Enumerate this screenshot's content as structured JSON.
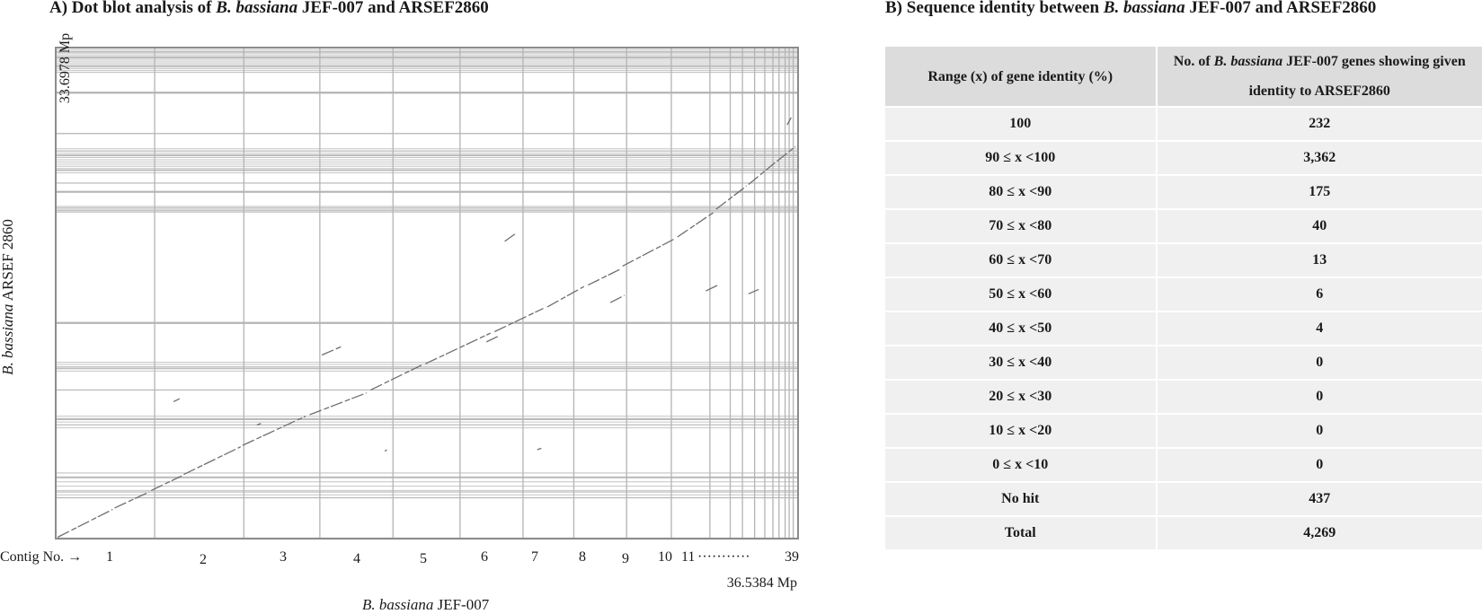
{
  "panel_a": {
    "title_prefix": "A) Dot blot analysis of ",
    "title_italic": "B. bassiana",
    "title_suffix": " JEF-007 and ARSEF2860",
    "y_max_label": "33.6978 Mp",
    "y_axis_italic": "B. bassiana",
    "y_axis_suffix": " ARSEF 2860",
    "x_axis_italic": "B. bassiana",
    "x_axis_suffix": " JEF-007",
    "x_max_label": "36.5384 Mp",
    "contig_label": "Contig No. →",
    "contig_numbers": [
      "1",
      "2",
      "3",
      "4",
      "5",
      "6",
      "7",
      "8",
      "9",
      "10",
      "11"
    ],
    "contig_dots": "···········",
    "contig_last": "39"
  },
  "chart_data": {
    "type": "scatter",
    "title": "A) Dot blot analysis of B. bassiana JEF-007 and ARSEF2860",
    "xlabel": "B. bassiana JEF-007",
    "ylabel": "B. bassiana ARSEF 2860",
    "xlim": [
      0,
      36.5384
    ],
    "ylim": [
      0,
      33.6978
    ],
    "x_unit": "Mp",
    "y_unit": "Mp",
    "grid": true,
    "x_contig_boundaries": [
      0,
      4.87,
      9.26,
      13.0,
      16.6,
      19.9,
      23.0,
      25.5,
      28.1,
      30.3,
      32.2,
      33.2,
      33.8,
      34.4,
      34.9,
      35.3,
      35.6,
      35.9,
      36.1,
      36.3,
      36.5384
    ],
    "y_contig_boundaries": [
      0,
      2.8,
      3.2,
      4.2,
      4.5,
      7.8,
      8.2,
      10.2,
      11.7,
      14.8,
      22.5,
      22.7,
      23.8,
      24.4,
      25.3,
      26.3,
      26.6,
      27.8,
      30.6,
      32.0,
      32.4,
      33.0,
      33.4,
      33.6978
    ],
    "alignment_segments": [
      {
        "x": [
          0.1,
          2.8
        ],
        "y": [
          0.1,
          2.0
        ]
      },
      {
        "x": [
          2.9,
          4.6
        ],
        "y": [
          2.1,
          3.2
        ]
      },
      {
        "x": [
          4.7,
          6.2
        ],
        "y": [
          3.3,
          4.3
        ]
      },
      {
        "x": [
          6.3,
          9.1
        ],
        "y": [
          4.4,
          6.3
        ]
      },
      {
        "x": [
          9.2,
          12.3
        ],
        "y": [
          6.4,
          8.4
        ]
      },
      {
        "x": [
          12.5,
          15.3
        ],
        "y": [
          8.5,
          10.0
        ]
      },
      {
        "x": [
          15.5,
          18.0
        ],
        "y": [
          10.2,
          11.9
        ]
      },
      {
        "x": [
          18.2,
          21.4
        ],
        "y": [
          12.0,
          14.1
        ]
      },
      {
        "x": [
          21.6,
          24.0
        ],
        "y": [
          14.2,
          15.8
        ]
      },
      {
        "x": [
          24.2,
          26.0
        ],
        "y": [
          15.9,
          17.3
        ]
      },
      {
        "x": [
          26.2,
          27.8
        ],
        "y": [
          17.4,
          18.5
        ]
      },
      {
        "x": [
          27.9,
          30.5
        ],
        "y": [
          18.7,
          20.6
        ]
      },
      {
        "x": [
          30.6,
          32.4
        ],
        "y": [
          20.7,
          22.4
        ]
      },
      {
        "x": [
          32.5,
          34.0
        ],
        "y": [
          22.6,
          24.2
        ]
      },
      {
        "x": [
          34.1,
          35.4
        ],
        "y": [
          24.3,
          25.8
        ]
      },
      {
        "x": [
          35.5,
          36.4
        ],
        "y": [
          25.9,
          26.9
        ]
      },
      {
        "x": [
          22.1,
          22.6
        ],
        "y": [
          20.4,
          20.9
        ]
      },
      {
        "x": [
          13.1,
          14.1
        ],
        "y": [
          12.6,
          13.2
        ]
      },
      {
        "x": [
          21.2,
          21.8
        ],
        "y": [
          13.5,
          13.9
        ]
      },
      {
        "x": [
          32.0,
          32.6
        ],
        "y": [
          17.0,
          17.4
        ]
      },
      {
        "x": [
          27.3,
          28.0
        ],
        "y": [
          16.2,
          16.7
        ]
      },
      {
        "x": [
          5.8,
          6.1
        ],
        "y": [
          9.4,
          9.6
        ]
      },
      {
        "x": [
          34.1,
          34.6
        ],
        "y": [
          16.8,
          17.1
        ]
      },
      {
        "x": [
          9.9,
          10.1
        ],
        "y": [
          7.8,
          7.9
        ]
      },
      {
        "x": [
          16.2,
          16.3
        ],
        "y": [
          6.0,
          6.1
        ]
      },
      {
        "x": [
          23.7,
          23.9
        ],
        "y": [
          6.1,
          6.2
        ]
      },
      {
        "x": [
          36.0,
          36.2
        ],
        "y": [
          28.4,
          28.9
        ]
      }
    ]
  },
  "panel_b": {
    "title_prefix": "B) Sequence identity between ",
    "title_italic": "B. bassiana",
    "title_suffix": " JEF-007 and ARSEF2860",
    "header_col1": "Range (x) of gene identity (%)",
    "header_col2_prefix": "No. of ",
    "header_col2_italic": "B. bassiana",
    "header_col2_suffix_line1": " JEF-007 genes showing given",
    "header_col2_line2": "identity to ARSEF2860",
    "rows": [
      {
        "range": "100",
        "count": "232"
      },
      {
        "range": "90 ≤ x <100",
        "count": "3,362"
      },
      {
        "range": "80 ≤ x <90",
        "count": "175"
      },
      {
        "range": "70 ≤ x <80",
        "count": "40"
      },
      {
        "range": "60 ≤ x <70",
        "count": "13"
      },
      {
        "range": "50 ≤ x <60",
        "count": "6"
      },
      {
        "range": "40 ≤ x <50",
        "count": "4"
      },
      {
        "range": "30 ≤ x <40",
        "count": "0"
      },
      {
        "range": "20 ≤ x <30",
        "count": "0"
      },
      {
        "range": "10 ≤ x <20",
        "count": "0"
      },
      {
        "range": "0 ≤ x <10",
        "count": "0"
      },
      {
        "range": "No hit",
        "count": "437"
      },
      {
        "range": "Total",
        "count": "4,269"
      }
    ]
  }
}
